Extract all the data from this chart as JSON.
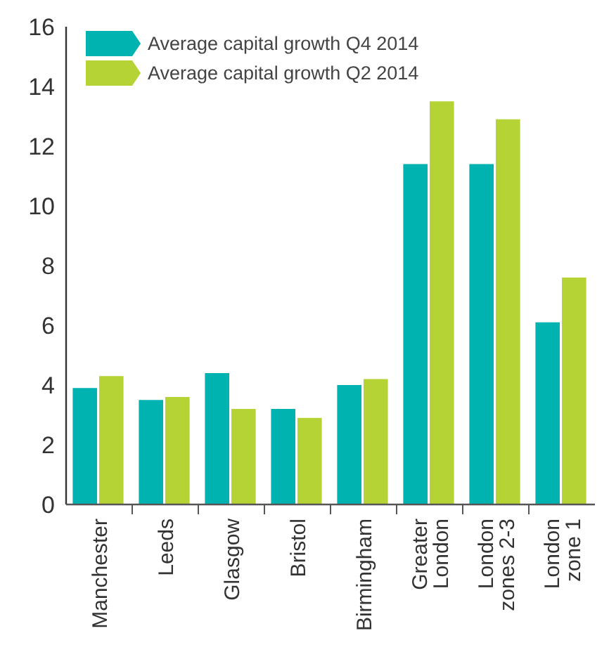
{
  "chart_data": {
    "type": "bar",
    "categories": [
      "Manchester",
      "Leeds",
      "Glasgow",
      "Bristol",
      "Birmingham",
      "Greater\nLondon",
      "London\nzones 2-3",
      "London\nzone 1"
    ],
    "series": [
      {
        "name": "Average capital growth Q4 2014",
        "color": "#00b3b1",
        "values": [
          3.9,
          3.5,
          4.4,
          3.2,
          4.0,
          11.4,
          11.4,
          6.1
        ]
      },
      {
        "name": "Average capital growth Q2 2014",
        "color": "#b5d334",
        "values": [
          4.3,
          3.6,
          3.2,
          2.9,
          4.2,
          13.5,
          12.9,
          7.6
        ]
      }
    ],
    "ylim": [
      0,
      16
    ],
    "yticks": [
      0,
      2,
      4,
      6,
      8,
      10,
      12,
      14,
      16
    ],
    "grid": false,
    "legend": "top left"
  }
}
